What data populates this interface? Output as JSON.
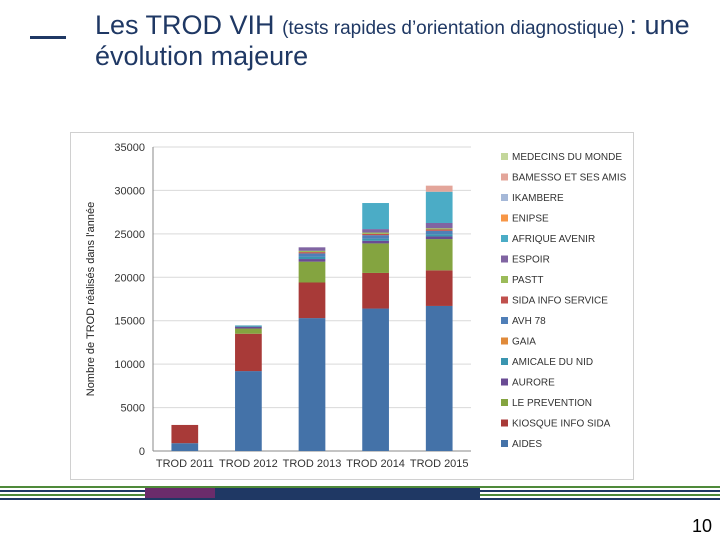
{
  "slide": {
    "title_part1": "Les TROD VIH ",
    "title_part2": "(tests rapides d’orientation diagnostique) ",
    "title_part3": ": une évolution majeure",
    "page_number": "10"
  },
  "colors": {
    "title": "#1f3864",
    "footer_green": "#4f8a3a",
    "footer_purple": "#6b2c6b",
    "footer_navy": "#1f3864"
  },
  "chart_data": {
    "type": "bar",
    "stacked": true,
    "title": "",
    "xlabel": "",
    "ylabel": "Nombre de TROD réalisés dans l'année",
    "ylim": [
      0,
      35000
    ],
    "yticks": [
      0,
      5000,
      10000,
      15000,
      20000,
      25000,
      30000,
      35000
    ],
    "grid": true,
    "legend_position": "right",
    "categories": [
      "TROD 2011",
      "TROD 2012",
      "TROD 2013",
      "TROD 2014",
      "TROD 2015"
    ],
    "series": [
      {
        "name": "AIDES",
        "color": "#4472a8",
        "values": [
          900,
          9200,
          15300,
          16400,
          16700
        ]
      },
      {
        "name": "KIOSQUE INFO SIDA",
        "color": "#a83a38",
        "values": [
          2100,
          4300,
          4100,
          4100,
          4100
        ]
      },
      {
        "name": "LE PREVENTION",
        "color": "#84a440",
        "values": [
          0,
          600,
          2400,
          3400,
          3600
        ]
      },
      {
        "name": "AURORE",
        "color": "#6a4b94",
        "values": [
          0,
          200,
          300,
          300,
          300
        ]
      },
      {
        "name": "AMICALE DU NID",
        "color": "#3a95b0",
        "values": [
          0,
          150,
          250,
          250,
          250
        ]
      },
      {
        "name": "GAIA",
        "color": "#e08a3a",
        "values": [
          0,
          0,
          0,
          0,
          0
        ]
      },
      {
        "name": "AVH 78",
        "color": "#4f7fb8",
        "values": [
          0,
          0,
          400,
          400,
          400
        ]
      },
      {
        "name": "SIDA INFO SERVICE",
        "color": "#c0504d",
        "values": [
          0,
          0,
          150,
          150,
          150
        ]
      },
      {
        "name": "PASTT",
        "color": "#9bbb59",
        "values": [
          0,
          0,
          150,
          150,
          150
        ]
      },
      {
        "name": "ESPOIR",
        "color": "#8064a2",
        "values": [
          0,
          0,
          400,
          400,
          600
        ]
      },
      {
        "name": "AFRIQUE AVENIR",
        "color": "#4bacc6",
        "values": [
          0,
          0,
          0,
          3000,
          3600
        ]
      },
      {
        "name": "ENIPSE",
        "color": "#f79646",
        "values": [
          0,
          0,
          0,
          0,
          0
        ]
      },
      {
        "name": "IKAMBERE",
        "color": "#a5b8d8",
        "values": [
          0,
          0,
          0,
          0,
          0
        ]
      },
      {
        "name": "BAMESSO ET SES AMIS",
        "color": "#e3a59a",
        "values": [
          0,
          0,
          0,
          0,
          700
        ]
      },
      {
        "name": "MEDECINS DU MONDE",
        "color": "#c4d79b",
        "values": [
          0,
          0,
          0,
          0,
          0
        ]
      }
    ]
  }
}
